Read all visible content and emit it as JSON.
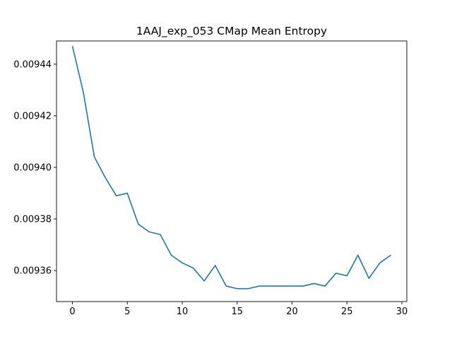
{
  "chart_data": {
    "type": "line",
    "title": "1AAJ_exp_053 CMap Mean Entropy",
    "xlabel": "",
    "ylabel": "",
    "xlim": [
      -1.45,
      30.45
    ],
    "ylim": [
      0.009348,
      0.009449
    ],
    "x_ticks": [
      0,
      5,
      10,
      15,
      20,
      25,
      30
    ],
    "y_ticks": [
      0.00936,
      0.00938,
      0.0094,
      0.00942,
      0.00944
    ],
    "y_tick_labels": [
      "0.00936",
      "0.00938",
      "0.00940",
      "0.00942",
      "0.00944"
    ],
    "grid": false,
    "series": [
      {
        "color": "#1f77b4",
        "x": [
          0,
          1,
          2,
          3,
          4,
          5,
          6,
          7,
          8,
          9,
          10,
          11,
          12,
          13,
          14,
          15,
          16,
          17,
          18,
          19,
          20,
          21,
          22,
          23,
          24,
          25,
          26,
          27,
          28,
          29
        ],
        "y": [
          0.009447,
          0.009429,
          0.009404,
          0.009396,
          0.009389,
          0.00939,
          0.009378,
          0.009375,
          0.009374,
          0.009366,
          0.009363,
          0.009361,
          0.009356,
          0.009362,
          0.009354,
          0.009353,
          0.009353,
          0.009354,
          0.009354,
          0.009354,
          0.009354,
          0.009354,
          0.009355,
          0.009354,
          0.009359,
          0.009358,
          0.009366,
          0.009357,
          0.009363,
          0.009366
        ]
      }
    ]
  }
}
